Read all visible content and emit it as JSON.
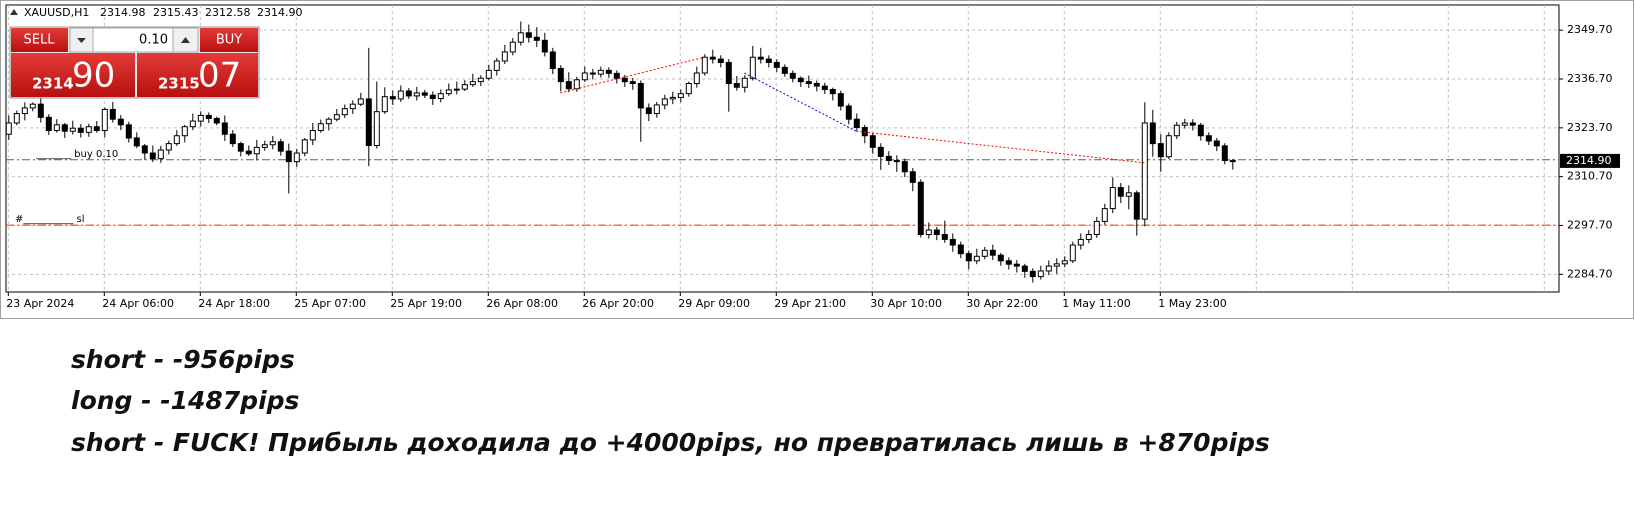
{
  "header": {
    "symbol": "XAUUSD,H1",
    "ohlc": [
      "2314.98",
      "2315.43",
      "2312.58",
      "2314.90"
    ]
  },
  "trade_panel": {
    "sell": "SELL",
    "buy": "BUY",
    "lot": "0.10",
    "sell_price_main": "2314",
    "sell_price_pips": "90",
    "buy_price_main": "2315",
    "buy_price_pips": "07"
  },
  "chart_data": {
    "type": "candlestick",
    "categories": [
      "23 Apr 2024",
      null,
      null,
      null,
      null,
      null,
      null,
      null,
      null,
      null,
      null,
      null,
      "24 Apr 06:00",
      null,
      null,
      null,
      null,
      null,
      null,
      null,
      null,
      null,
      null,
      null,
      "24 Apr 18:00",
      null,
      null,
      null,
      null,
      null,
      null,
      null,
      null,
      null,
      null,
      null,
      "25 Apr 07:00",
      null,
      null,
      null,
      null,
      null,
      null,
      null,
      null,
      null,
      null,
      null,
      "25 Apr 19:00",
      null,
      null,
      null,
      null,
      null,
      null,
      null,
      null,
      null,
      null,
      null,
      "26 Apr 08:00",
      null,
      null,
      null,
      null,
      null,
      null,
      null,
      null,
      null,
      null,
      null,
      "26 Apr 20:00",
      null,
      null,
      null,
      null,
      null,
      null,
      null,
      null,
      null,
      null,
      null,
      "29 Apr 09:00",
      null,
      null,
      null,
      null,
      null,
      null,
      null,
      null,
      null,
      null,
      null,
      "29 Apr 21:00",
      null,
      null,
      null,
      null,
      null,
      null,
      null,
      null,
      null,
      null,
      null,
      "30 Apr 10:00",
      null,
      null,
      null,
      null,
      null,
      null,
      null,
      null,
      null,
      null,
      null,
      "30 Apr 22:00",
      null,
      null,
      null,
      null,
      null,
      null,
      null,
      null,
      null,
      null,
      null,
      "1 May 11:00",
      null,
      null,
      null,
      null,
      null,
      null,
      null,
      null,
      null,
      null,
      null,
      "1 May 23:00",
      null,
      null,
      null,
      null,
      null,
      null,
      null,
      null,
      null
    ],
    "open": [
      2322.0,
      2325.0,
      2327.5,
      2329.0,
      2330.0,
      2326.5,
      2323.0,
      2324.5,
      2322.8,
      2323.6,
      2322.5,
      2324.0,
      2323.0,
      2328.6,
      2326.0,
      2324.5,
      2321.0,
      2318.9,
      2317.0,
      2315.5,
      2317.8,
      2319.5,
      2321.6,
      2324.0,
      2325.5,
      2327.0,
      2326.2,
      2325.0,
      2322.0,
      2319.5,
      2317.5,
      2316.8,
      2318.5,
      2319.2,
      2320.0,
      2317.5,
      2314.7,
      2317.0,
      2320.5,
      2323.0,
      2324.8,
      2326.0,
      2327.2,
      2328.8,
      2330.0,
      2331.4,
      2319.0,
      2328.0,
      2332.0,
      2331.4,
      2333.5,
      2332.2,
      2333.0,
      2332.4,
      2331.5,
      2332.8,
      2333.8,
      2334.0,
      2335.2,
      2336.0,
      2336.9,
      2339.0,
      2341.5,
      2343.9,
      2346.5,
      2349.0,
      2347.8,
      2347.0,
      2343.9,
      2339.5,
      2336.0,
      2334.1,
      2336.5,
      2338.3,
      2338.0,
      2339.0,
      2338.2,
      2336.9,
      2336.0,
      2335.5,
      2329.0,
      2327.5,
      2329.8,
      2331.4,
      2331.8,
      2332.8,
      2335.5,
      2338.3,
      2342.5,
      2342.0,
      2341.1,
      2335.5,
      2334.5,
      2336.9,
      2342.5,
      2342.0,
      2341.1,
      2339.8,
      2338.2,
      2336.9,
      2336.0,
      2335.5,
      2334.8,
      2333.9,
      2332.8,
      2329.5,
      2326.0,
      2323.8,
      2321.6,
      2318.5,
      2316.1,
      2315.0,
      2314.7,
      2312.0,
      2309.2,
      2295.3,
      2296.5,
      2295.3,
      2294.0,
      2292.5,
      2290.2,
      2288.3,
      2289.5,
      2291.1,
      2289.8,
      2288.3,
      2287.4,
      2286.9,
      2285.5,
      2284.1,
      2285.6,
      2286.9,
      2287.5,
      2288.3,
      2292.5,
      2294.0,
      2295.3,
      2298.8,
      2302.2,
      2307.8,
      2305.5,
      2306.4,
      2299.4,
      2325.0,
      2319.5,
      2316.0,
      2321.6,
      2324.4,
      2325.0,
      2324.4,
      2321.6,
      2320.2,
      2318.9,
      2314.98
    ],
    "high": [
      2327.0,
      2328.3,
      2330.5,
      2330.5,
      2332.0,
      2327.3,
      2326.0,
      2325.0,
      2325.6,
      2324.7,
      2324.8,
      2325.5,
      2329.1,
      2330.6,
      2327.1,
      2325.3,
      2322.5,
      2319.4,
      2319.0,
      2318.9,
      2320.3,
      2323.1,
      2324.5,
      2327.5,
      2328.1,
      2327.8,
      2326.7,
      2327.0,
      2323.1,
      2320.0,
      2319.0,
      2320.5,
      2320.3,
      2321.5,
      2320.8,
      2319.5,
      2318.1,
      2321.0,
      2325.0,
      2325.9,
      2326.5,
      2328.7,
      2329.9,
      2331.0,
      2333.0,
      2345.0,
      2336.0,
      2334.5,
      2333.6,
      2335.0,
      2334.3,
      2334.6,
      2333.8,
      2333.4,
      2333.9,
      2335.5,
      2336.0,
      2336.4,
      2338.1,
      2337.7,
      2340.5,
      2342.3,
      2345.8,
      2347.6,
      2352.0,
      2351.2,
      2350.5,
      2349.0,
      2345.0,
      2340.4,
      2338.5,
      2337.3,
      2340.0,
      2339.4,
      2340.0,
      2339.8,
      2339.0,
      2337.8,
      2337.0,
      2336.3,
      2330.2,
      2330.6,
      2332.5,
      2333.3,
      2333.9,
      2336.0,
      2340.0,
      2343.3,
      2344.5,
      2343.0,
      2342.0,
      2337.5,
      2337.7,
      2345.5,
      2345.0,
      2343.0,
      2341.9,
      2340.6,
      2339.0,
      2337.4,
      2337.6,
      2336.3,
      2335.7,
      2334.4,
      2333.6,
      2330.2,
      2327.5,
      2324.5,
      2322.3,
      2319.6,
      2317.5,
      2316.4,
      2315.5,
      2313.0,
      2310.0,
      2298.5,
      2297.3,
      2299.0,
      2295.6,
      2293.4,
      2291.0,
      2291.5,
      2292.0,
      2292.6,
      2290.4,
      2289.2,
      2288.5,
      2287.5,
      2286.3,
      2287.0,
      2288.4,
      2289.0,
      2289.5,
      2293.4,
      2295.6,
      2296.5,
      2300.0,
      2303.5,
      2310.5,
      2309.0,
      2308.4,
      2307.0,
      2330.5,
      2328.5,
      2322.0,
      2322.5,
      2325.3,
      2326.1,
      2326.0,
      2325.0,
      2322.5,
      2321.0,
      2319.6,
      2315.43
    ],
    "low": [
      2320.5,
      2324.4,
      2325.7,
      2328.1,
      2325.1,
      2321.8,
      2322.4,
      2321.0,
      2321.9,
      2321.1,
      2321.3,
      2322.4,
      2321.2,
      2325.1,
      2323.1,
      2319.8,
      2318.3,
      2315.2,
      2314.6,
      2314.4,
      2316.6,
      2318.9,
      2319.8,
      2323.1,
      2324.1,
      2325.0,
      2324.4,
      2320.2,
      2318.6,
      2316.1,
      2316.2,
      2315.0,
      2317.6,
      2318.0,
      2316.3,
      2306.2,
      2313.3,
      2316.1,
      2319.1,
      2322.4,
      2323.0,
      2325.4,
      2326.3,
      2327.4,
      2329.5,
      2313.5,
      2318.2,
      2327.4,
      2329.8,
      2330.6,
      2331.4,
      2331.0,
      2331.6,
      2329.8,
      2330.5,
      2332.2,
      2332.6,
      2333.5,
      2334.6,
      2334.8,
      2336.3,
      2337.6,
      2340.7,
      2343.0,
      2345.6,
      2346.4,
      2345.2,
      2342.7,
      2338.0,
      2333.4,
      2333.2,
      2333.3,
      2335.9,
      2336.6,
      2337.1,
      2337.0,
      2335.5,
      2334.6,
      2333.8,
      2320.0,
      2325.5,
      2326.4,
      2328.6,
      2330.0,
      2330.5,
      2332.0,
      2334.4,
      2337.6,
      2340.8,
      2339.8,
      2328.0,
      2333.6,
      2333.1,
      2336.3,
      2340.8,
      2339.8,
      2338.6,
      2337.3,
      2335.8,
      2334.6,
      2334.3,
      2333.4,
      2332.7,
      2331.0,
      2328.3,
      2324.6,
      2322.9,
      2319.6,
      2316.8,
      2312.5,
      2313.8,
      2312.0,
      2310.6,
      2306.8,
      2294.5,
      2294.2,
      2293.8,
      2293.1,
      2290.7,
      2289.0,
      2286.0,
      2287.4,
      2288.7,
      2288.5,
      2287.0,
      2286.0,
      2285.2,
      2283.8,
      2282.5,
      2283.3,
      2284.5,
      2284.8,
      2286.6,
      2287.7,
      2291.3,
      2293.0,
      2294.4,
      2297.9,
      2301.0,
      2303.7,
      2302.0,
      2295.0,
      2297.5,
      2316.0,
      2312.0,
      2315.4,
      2320.7,
      2323.5,
      2323.0,
      2320.3,
      2319.1,
      2317.5,
      2314.0,
      2312.58
    ],
    "close": [
      2325.0,
      2327.5,
      2329.0,
      2330.0,
      2326.5,
      2323.0,
      2324.5,
      2322.8,
      2323.6,
      2322.5,
      2324.0,
      2323.0,
      2328.6,
      2326.0,
      2324.5,
      2321.0,
      2318.9,
      2317.0,
      2315.5,
      2317.8,
      2319.5,
      2321.6,
      2324.0,
      2325.5,
      2327.0,
      2326.2,
      2325.0,
      2322.0,
      2319.5,
      2317.5,
      2316.8,
      2318.5,
      2319.2,
      2320.0,
      2317.5,
      2314.7,
      2317.0,
      2320.5,
      2323.0,
      2324.8,
      2326.0,
      2327.2,
      2328.8,
      2330.0,
      2331.4,
      2319.0,
      2328.0,
      2332.0,
      2331.4,
      2333.5,
      2332.2,
      2333.0,
      2332.4,
      2331.5,
      2332.8,
      2333.8,
      2334.0,
      2335.2,
      2336.0,
      2336.9,
      2339.0,
      2341.5,
      2343.9,
      2346.5,
      2349.0,
      2347.8,
      2347.0,
      2343.9,
      2339.5,
      2336.0,
      2334.1,
      2336.5,
      2338.3,
      2338.0,
      2339.0,
      2338.2,
      2336.9,
      2336.0,
      2335.5,
      2329.0,
      2327.5,
      2329.8,
      2331.4,
      2331.8,
      2332.8,
      2335.5,
      2338.3,
      2342.5,
      2342.0,
      2341.1,
      2335.5,
      2334.5,
      2336.9,
      2342.5,
      2342.0,
      2341.1,
      2339.8,
      2338.2,
      2336.9,
      2336.0,
      2335.5,
      2334.8,
      2333.9,
      2332.8,
      2329.5,
      2326.0,
      2323.8,
      2321.6,
      2318.5,
      2316.1,
      2315.0,
      2314.7,
      2312.0,
      2309.2,
      2295.3,
      2296.5,
      2295.3,
      2294.0,
      2292.5,
      2290.2,
      2288.3,
      2289.5,
      2291.1,
      2289.8,
      2288.3,
      2287.4,
      2286.9,
      2285.5,
      2284.1,
      2285.6,
      2286.9,
      2287.5,
      2288.3,
      2292.5,
      2294.0,
      2295.3,
      2298.8,
      2302.2,
      2307.8,
      2305.5,
      2306.4,
      2299.4,
      2325.0,
      2319.5,
      2316.0,
      2321.6,
      2324.4,
      2325.0,
      2324.4,
      2321.6,
      2320.2,
      2318.9,
      2315.0,
      2314.9
    ],
    "bull_color": "#ffffff",
    "bear_color": "#000000",
    "ylim": [
      2280,
      2356.4
    ],
    "yticks": [
      {
        "value": 2284.7,
        "label": "2284.70"
      },
      {
        "value": 2297.7,
        "label": "2297.70"
      },
      {
        "value": 2310.7,
        "label": "2310.70"
      },
      {
        "value": 2323.7,
        "label": "2323.70"
      },
      {
        "value": 2336.7,
        "label": "2336.70"
      },
      {
        "value": 2349.7,
        "label": "2349.70"
      }
    ],
    "grid": true,
    "price_tag": {
      "value": 2314.9,
      "label": "2314.90"
    },
    "levels": [
      {
        "price": 2315.2,
        "color": "#1e8c1e",
        "label": "_______ buy 0.10"
      },
      {
        "price": 2297.8,
        "color": "#ff3300",
        "label": "#__________ sl"
      }
    ],
    "trade_lines": [
      {
        "x": [
          69,
          87
        ],
        "y": [
          2333.0,
          2342.5
        ],
        "color": "#ff0000"
      },
      {
        "x": [
          92,
          106
        ],
        "y": [
          2338.3,
          2322.8
        ],
        "color": "#0000ff"
      },
      {
        "x": [
          106,
          142
        ],
        "y": [
          2322.8,
          2314.4
        ],
        "color": "#ff0000"
      }
    ]
  },
  "notes": [
    "short - -956pips",
    "long - -1487pips",
    "short - FUCK! Прибыль доходила до +4000pips, но превратилась лишь в +870pips"
  ]
}
